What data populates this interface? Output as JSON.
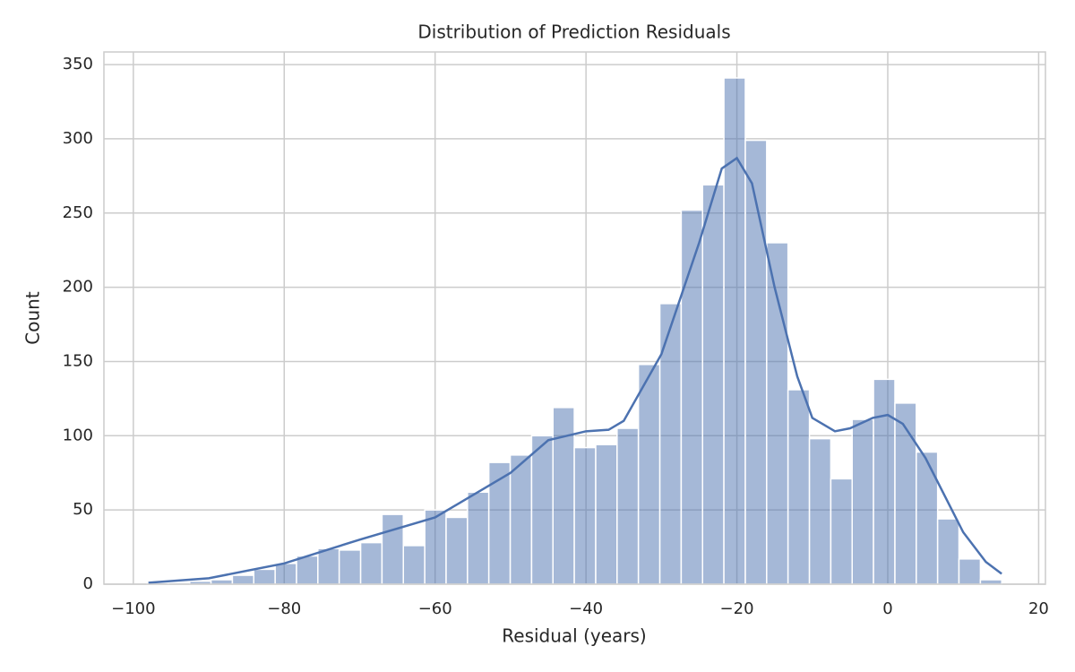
{
  "chart_data": {
    "type": "histogram",
    "title": "Distribution of Prediction Residuals",
    "x_label": "Residual (years)",
    "y_label": "Count",
    "color": "#4c72b0",
    "bins": [
      -98.2,
      -95.37,
      -92.53,
      -89.7,
      -86.87,
      -84.04,
      -81.2,
      -78.37,
      -75.54,
      -72.71,
      -69.87,
      -67.04,
      -64.21,
      -61.37,
      -58.54,
      -55.71,
      -52.88,
      -50.04,
      -47.21,
      -44.38,
      -41.55,
      -38.71,
      -35.88,
      -33.05,
      -30.21,
      -27.38,
      -24.55,
      -21.72,
      -18.88,
      -16.05,
      -13.22,
      -10.38,
      -7.55,
      -4.72,
      -1.89,
      0.95,
      3.78,
      6.61,
      9.44,
      12.28,
      15.11
    ],
    "counts": [
      1,
      1,
      2,
      3,
      6,
      10,
      14,
      19,
      24,
      23,
      28,
      47,
      26,
      50,
      45,
      62,
      82,
      87,
      100,
      119,
      92,
      94,
      105,
      148,
      189,
      252,
      269,
      341,
      299,
      230,
      131,
      98,
      71,
      111,
      138,
      122,
      89,
      44,
      17,
      3
    ],
    "kde": {
      "x": [
        -98,
        -90,
        -80,
        -70,
        -60,
        -50,
        -45,
        -40,
        -37,
        -35,
        -30,
        -25,
        -22,
        -20,
        -18,
        -15,
        -12,
        -10,
        -7,
        -5,
        -2,
        0,
        2,
        5,
        8,
        10,
        13,
        15.1
      ],
      "y": [
        1,
        4,
        14,
        30,
        45,
        75,
        97,
        103,
        104,
        110,
        155,
        230,
        280,
        287,
        270,
        200,
        140,
        112,
        103,
        105,
        112,
        114,
        108,
        85,
        55,
        35,
        15,
        7
      ]
    },
    "xlim": [
      -103.9,
      20.9
    ],
    "ylim": [
      0,
      358.5
    ],
    "xticks": [
      {
        "value": -100,
        "label": "−100"
      },
      {
        "value": -80,
        "label": "−80"
      },
      {
        "value": -60,
        "label": "−60"
      },
      {
        "value": -40,
        "label": "−40"
      },
      {
        "value": -20,
        "label": "−20"
      },
      0,
      20
    ],
    "yticks": [
      0,
      50,
      100,
      150,
      200,
      250,
      300,
      350
    ],
    "grid": true
  }
}
